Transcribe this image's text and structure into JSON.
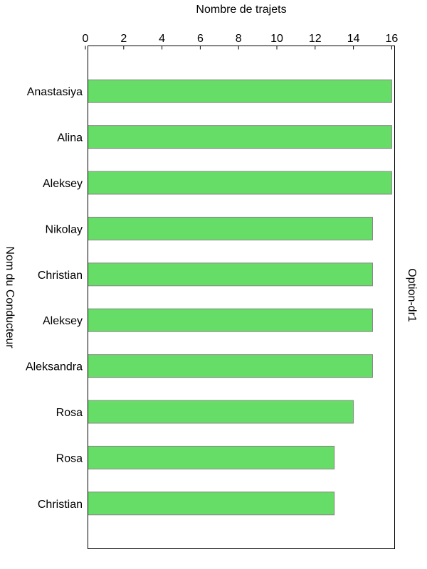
{
  "chart_data": {
    "type": "bar",
    "orientation": "horizontal",
    "xlabel": "Nombre de trajets",
    "ylabel": "Nom du Conducteur",
    "right_label": "Option-dr1",
    "xlim": [
      0,
      16
    ],
    "x_ticks": [
      "0",
      "2",
      "4",
      "6",
      "8",
      "10",
      "12",
      "14",
      "16"
    ],
    "x_axis_position": "top",
    "grid": false,
    "categories": [
      "Anastasiya",
      "Alina",
      "Aleksey",
      "Nikolay",
      "Christian",
      "Aleksey",
      "Aleksandra",
      "Rosa",
      "Rosa",
      "Christian"
    ],
    "values": [
      16,
      16,
      16,
      15,
      15,
      15,
      15,
      14,
      13,
      13
    ],
    "bar_color": "#66dd66",
    "bar_edge_color": "#888888"
  }
}
